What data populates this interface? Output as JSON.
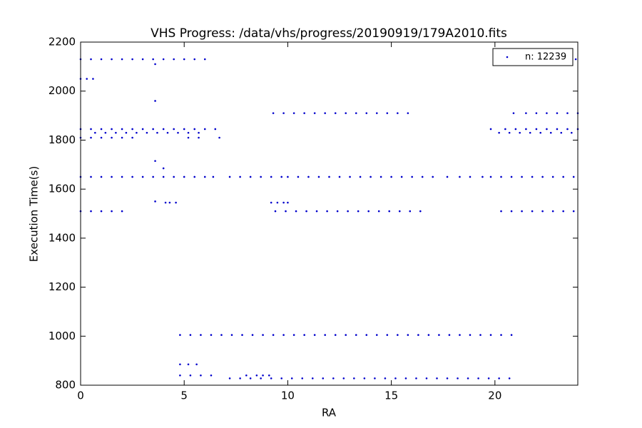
{
  "chart_data": {
    "type": "scatter",
    "title": "VHS Progress: /data/vhs/progress/20190919/179A2010.fits",
    "x_label": "RA",
    "y_label": "Execution Time(s)",
    "xlim": [
      0,
      24
    ],
    "ylim": [
      800,
      2200
    ],
    "xticks": [
      0,
      5,
      10,
      15,
      20
    ],
    "yticks": [
      800,
      1000,
      1200,
      1400,
      1600,
      1800,
      2000,
      2200
    ],
    "legend": "upper right",
    "series": [
      {
        "name": "n: 12239",
        "color": "#0000cc",
        "x": [
          0,
          0.5,
          1,
          1.5,
          2,
          2.5,
          3,
          3.5,
          4,
          4.5,
          5,
          5.5,
          6,
          23.9,
          0,
          0.3,
          0.6,
          9.3,
          9.8,
          10.3,
          10.8,
          11.3,
          11.8,
          12.3,
          12.8,
          13.3,
          13.8,
          14.3,
          14.8,
          15.3,
          15.8,
          20.9,
          21.5,
          22,
          22.5,
          23,
          23.5,
          24,
          0,
          0.5,
          1,
          1.5,
          2,
          2.5,
          3,
          3.5,
          4,
          4.5,
          5,
          5.5,
          6,
          6.5,
          19.8,
          20.5,
          21,
          21.5,
          22,
          22.5,
          23,
          23.5,
          24,
          0.7,
          1.2,
          1.7,
          2.2,
          2.7,
          3.2,
          3.7,
          4.2,
          4.7,
          5.2,
          5.7,
          20.2,
          20.7,
          21.2,
          21.7,
          22.2,
          22.7,
          23.2,
          23.7,
          0,
          0.5,
          1,
          1.5,
          2,
          2.5,
          5.2,
          5.7,
          6.7,
          0,
          0.5,
          1,
          1.5,
          2,
          2.5,
          3,
          3.5,
          4,
          4.5,
          5,
          5.5,
          6,
          6.4,
          7.2,
          7.7,
          8.2,
          8.7,
          9.2,
          9.7,
          10,
          10.5,
          11,
          11.5,
          12,
          12.5,
          13,
          13.5,
          14,
          14.5,
          15,
          15.5,
          16,
          16.5,
          17,
          17.7,
          18.3,
          18.8,
          19.4,
          19.8,
          20.3,
          20.8,
          21.3,
          21.8,
          22.3,
          22.8,
          23.3,
          23.8,
          4.1,
          4.3,
          4.6,
          9.2,
          9.5,
          9.8,
          10,
          0,
          0.5,
          1,
          1.5,
          2,
          9.4,
          9.9,
          10.4,
          10.9,
          11.4,
          11.9,
          12.4,
          12.9,
          13.4,
          13.9,
          14.4,
          14.9,
          15.4,
          15.9,
          16.4,
          20.3,
          20.8,
          21.3,
          21.8,
          22.3,
          22.8,
          23.3,
          23.8,
          4.8,
          5.3,
          5.8,
          6.3,
          6.8,
          7.3,
          7.8,
          8.3,
          8.8,
          9.3,
          9.8,
          10.3,
          10.8,
          11.3,
          11.8,
          12.3,
          12.8,
          13.3,
          13.8,
          14.3,
          14.8,
          15.3,
          15.8,
          16.3,
          16.8,
          17.3,
          17.8,
          18.3,
          18.8,
          19.3,
          19.8,
          20.3,
          20.8,
          4.8,
          5.2,
          5.6,
          4.8,
          5.3,
          5.8,
          6.3,
          8.0,
          8.5,
          8.8,
          9.1,
          7.2,
          7.7,
          8.2,
          8.7,
          9.2,
          9.7,
          10.2,
          10.7,
          11.2,
          11.7,
          12.2,
          12.7,
          13.2,
          13.7,
          14.2,
          14.7,
          15.2,
          15.7,
          16.2,
          16.7,
          17.2,
          17.7,
          18.2,
          18.7,
          19.2,
          19.7,
          20.2,
          20.7,
          3.6,
          3.6,
          3.6,
          4.0,
          3.6
        ],
        "values": [
          2130,
          2130,
          2130,
          2130,
          2130,
          2130,
          2130,
          2130,
          2130,
          2130,
          2130,
          2130,
          2130,
          2130,
          2050,
          2050,
          2050,
          1910,
          1910,
          1910,
          1910,
          1910,
          1910,
          1910,
          1910,
          1910,
          1910,
          1910,
          1910,
          1910,
          1910,
          1910,
          1910,
          1910,
          1910,
          1910,
          1910,
          1910,
          1845,
          1845,
          1845,
          1845,
          1845,
          1845,
          1845,
          1845,
          1845,
          1845,
          1845,
          1845,
          1845,
          1845,
          1845,
          1845,
          1845,
          1845,
          1845,
          1845,
          1845,
          1845,
          1845,
          1830,
          1830,
          1830,
          1830,
          1830,
          1830,
          1830,
          1830,
          1830,
          1830,
          1830,
          1830,
          1830,
          1830,
          1830,
          1830,
          1830,
          1830,
          1830,
          1810,
          1810,
          1810,
          1810,
          1810,
          1810,
          1810,
          1810,
          1810,
          1650,
          1650,
          1650,
          1650,
          1650,
          1650,
          1650,
          1650,
          1650,
          1650,
          1650,
          1650,
          1650,
          1650,
          1650,
          1650,
          1650,
          1650,
          1650,
          1650,
          1650,
          1650,
          1650,
          1650,
          1650,
          1650,
          1650,
          1650,
          1650,
          1650,
          1650,
          1650,
          1650,
          1650,
          1650,
          1650,
          1650,
          1650,
          1650,
          1650,
          1650,
          1650,
          1650,
          1650,
          1650,
          1650,
          1650,
          1650,
          1545,
          1545,
          1545,
          1545,
          1545,
          1545,
          1545,
          1510,
          1510,
          1510,
          1510,
          1510,
          1510,
          1510,
          1510,
          1510,
          1510,
          1510,
          1510,
          1510,
          1510,
          1510,
          1510,
          1510,
          1510,
          1510,
          1510,
          1510,
          1510,
          1510,
          1510,
          1510,
          1510,
          1510,
          1510,
          1005,
          1005,
          1005,
          1005,
          1005,
          1005,
          1005,
          1005,
          1005,
          1005,
          1005,
          1005,
          1005,
          1005,
          1005,
          1005,
          1005,
          1005,
          1005,
          1005,
          1005,
          1005,
          1005,
          1005,
          1005,
          1005,
          1005,
          1005,
          1005,
          1005,
          1005,
          1005,
          1005,
          885,
          885,
          885,
          840,
          840,
          840,
          840,
          840,
          840,
          840,
          840,
          828,
          828,
          828,
          828,
          828,
          828,
          828,
          828,
          828,
          828,
          828,
          828,
          828,
          828,
          828,
          828,
          828,
          828,
          828,
          828,
          828,
          828,
          828,
          828,
          828,
          828,
          828,
          828,
          2110,
          1960,
          1715,
          1685,
          1550
        ]
      }
    ]
  }
}
